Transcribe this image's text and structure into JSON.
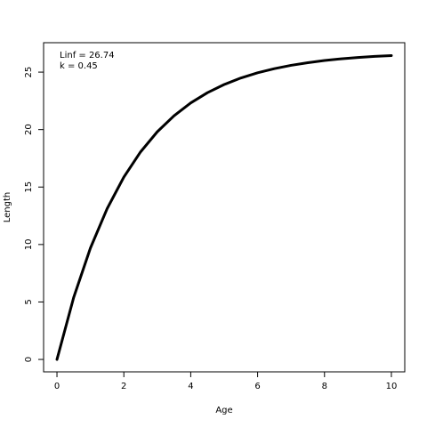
{
  "chart_data": {
    "type": "line",
    "x_label": "Age",
    "y_label": "Length",
    "annotations": [
      "Linf = 26.74",
      "k = 0.45"
    ],
    "x": [
      0,
      0.5,
      1,
      1.5,
      2,
      2.5,
      3,
      3.5,
      4,
      4.5,
      5,
      5.5,
      6,
      6.5,
      7,
      7.5,
      8,
      8.5,
      9,
      9.5,
      10
    ],
    "values": [
      0,
      5.39,
      9.69,
      13.12,
      15.87,
      18.06,
      19.81,
      21.2,
      22.32,
      23.21,
      23.92,
      24.49,
      24.94,
      25.3,
      25.59,
      25.82,
      26.01,
      26.16,
      26.27,
      26.37,
      26.44
    ],
    "color": "#000000",
    "xlim": [
      -0.4,
      10.4
    ],
    "xticks": [
      0,
      2,
      4,
      6,
      8,
      10
    ],
    "ylim": [
      -1.08,
      27.56
    ],
    "yticks": [
      0,
      5,
      10,
      15,
      20,
      25
    ],
    "grid": false
  }
}
